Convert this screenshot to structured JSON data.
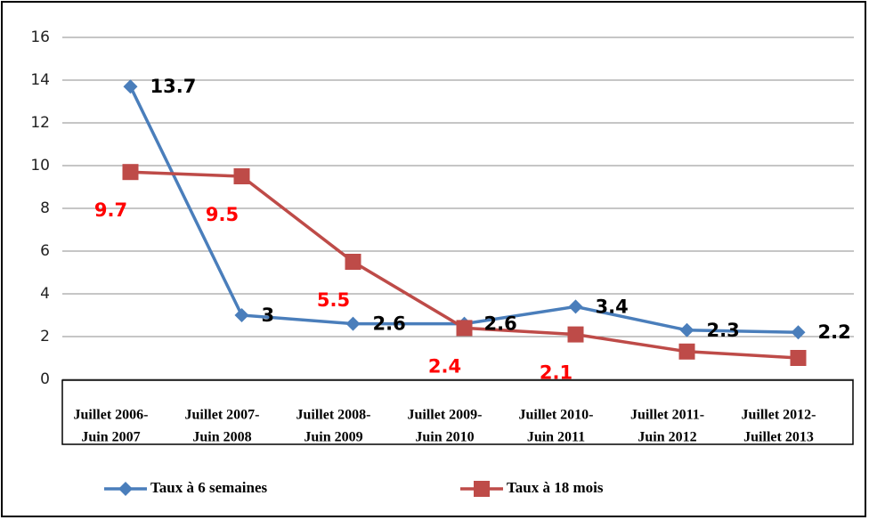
{
  "chart_data": {
    "type": "line",
    "categories": [
      [
        "Juillet 2006-",
        "Juin 2007"
      ],
      [
        "Juillet 2007-",
        "Juin 2008"
      ],
      [
        "Juillet 2008-",
        "Juin 2009"
      ],
      [
        "Juillet 2009-",
        "Juin 2010"
      ],
      [
        "Juillet 2010-",
        "Juin 2011"
      ],
      [
        "Juillet 2011-",
        "Juin 2012"
      ],
      [
        "Juillet 2012-",
        "Juillet 2013"
      ]
    ],
    "series": [
      {
        "name": "Taux à 6 semaines",
        "color": "#4a7ebb",
        "label_color": "#000000",
        "marker": "diamond",
        "values": [
          13.7,
          3,
          2.6,
          2.6,
          3.4,
          2.3,
          2.2
        ]
      },
      {
        "name": "Taux à 18 mois",
        "color": "#be4b48",
        "label_color": "#ff0000",
        "marker": "square",
        "values": [
          9.7,
          9.5,
          5.5,
          2.4,
          2.1,
          1.3,
          1
        ]
      }
    ],
    "ylim": [
      0,
      16
    ],
    "yticks": [
      0,
      2,
      4,
      6,
      8,
      10,
      12,
      14,
      16
    ],
    "grid": true,
    "legend": "bottom"
  }
}
